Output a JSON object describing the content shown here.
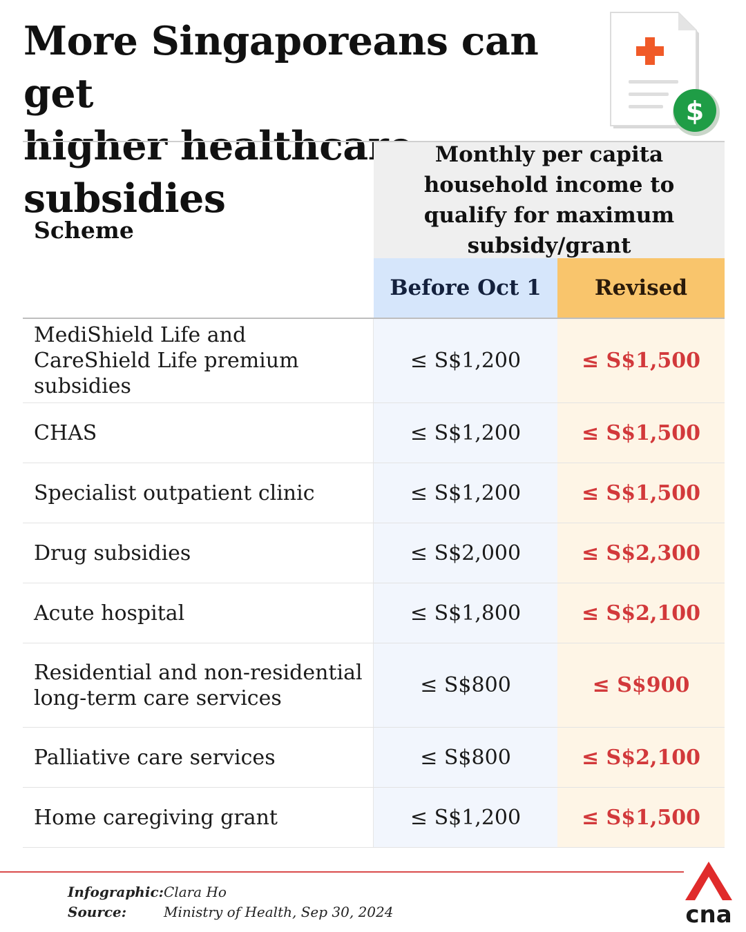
{
  "title": {
    "line1": "More Singaporeans can get",
    "line2": "higher healthcare subsidies"
  },
  "icons": {
    "document": "medical-bill-icon",
    "dollar": "dollar-icon",
    "logo": "cna-logo"
  },
  "colors": {
    "before_header": "#d6e6fb",
    "revised_header": "#f9c56c",
    "revised_text": "#d2393b",
    "footer_line": "#d94a4a",
    "logo_red": "#e02b2b"
  },
  "table": {
    "scheme_header": "Scheme",
    "income_header": "Monthly per capita household income to qualify for maximum subsidy/grant",
    "before_header": "Before Oct 1",
    "revised_header": "Revised",
    "rows": [
      {
        "scheme": "MediShield Life and CareShield Life premium subsidies",
        "before": "≤ S$1,200",
        "revised": "≤ S$1,500"
      },
      {
        "scheme": "CHAS",
        "before": "≤ S$1,200",
        "revised": "≤ S$1,500"
      },
      {
        "scheme": "Specialist outpatient clinic",
        "before": "≤ S$1,200",
        "revised": "≤ S$1,500"
      },
      {
        "scheme": "Drug subsidies",
        "before": "≤ S$2,000",
        "revised": "≤ S$2,300"
      },
      {
        "scheme": "Acute hospital",
        "before": "≤ S$1,800",
        "revised": "≤ S$2,100"
      },
      {
        "scheme": "Residential and non-residential long-term care services",
        "before": "≤ S$800",
        "revised": "≤ S$900"
      },
      {
        "scheme": "Palliative care services",
        "before": "≤ S$800",
        "revised": "≤ S$2,100"
      },
      {
        "scheme": "Home caregiving grant",
        "before": "≤ S$1,200",
        "revised": "≤ S$1,500"
      }
    ]
  },
  "footer": {
    "infographic_label": "Infographic:",
    "infographic_value": "Clara Ho",
    "source_label": "Source:",
    "source_value": "Ministry of Health, Sep 30, 2024",
    "logo_text": "cna"
  }
}
